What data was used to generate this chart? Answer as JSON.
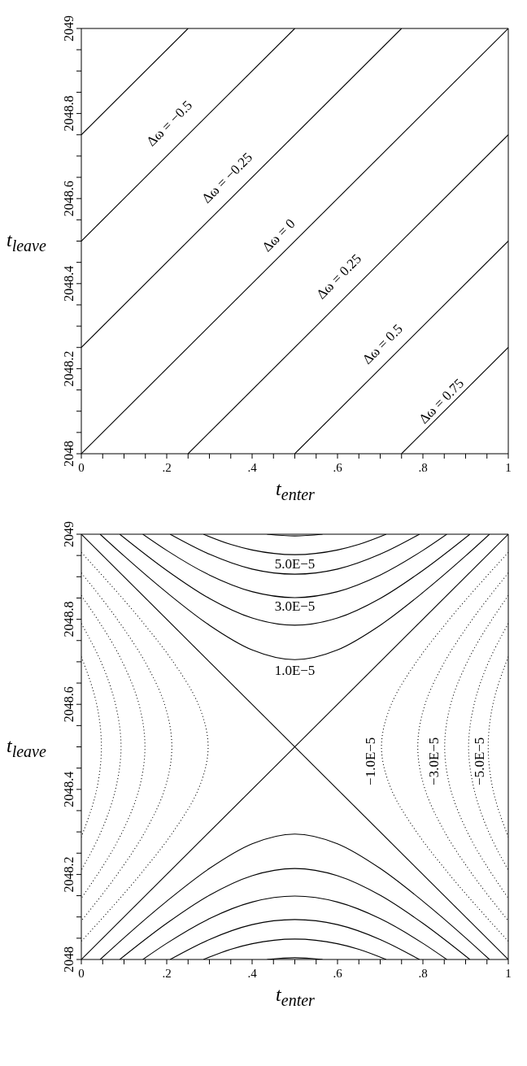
{
  "chart_data": [
    {
      "type": "line",
      "xlabel": "t$_{enter}$",
      "ylabel": "t$_{leave}$",
      "xlim": [
        0,
        1
      ],
      "ylim": [
        2048,
        2049
      ],
      "marker": "none",
      "xticks": [
        {
          "value": 0,
          "label": "0"
        },
        {
          "value": 0.05,
          "label": null
        },
        {
          "value": 0.1,
          "label": null
        },
        {
          "value": 0.15,
          "label": null
        },
        {
          "value": 0.2,
          "label": ".2"
        },
        {
          "value": 0.25,
          "label": null
        },
        {
          "value": 0.3,
          "label": null
        },
        {
          "value": 0.35,
          "label": null
        },
        {
          "value": 0.4,
          "label": ".4"
        },
        {
          "value": 0.45,
          "label": null
        },
        {
          "value": 0.5,
          "label": null
        },
        {
          "value": 0.55,
          "label": null
        },
        {
          "value": 0.6,
          "label": ".6"
        },
        {
          "value": 0.65,
          "label": null
        },
        {
          "value": 0.7,
          "label": null
        },
        {
          "value": 0.75,
          "label": null
        },
        {
          "value": 0.8,
          "label": ".8"
        },
        {
          "value": 0.85,
          "label": null
        },
        {
          "value": 0.9,
          "label": null
        },
        {
          "value": 0.95,
          "label": null
        },
        {
          "value": 1,
          "label": "1"
        }
      ],
      "yticks": [
        2048,
        {
          "value": 2048.05,
          "label": null
        },
        {
          "value": 2048.1,
          "label": null
        },
        {
          "value": 2048.15,
          "label": null
        },
        2048.2,
        {
          "value": 2048.25,
          "label": null
        },
        {
          "value": 2048.3,
          "label": null
        },
        {
          "value": 2048.35,
          "label": null
        },
        2048.4,
        {
          "value": 2048.45,
          "label": null
        },
        {
          "value": 2048.5,
          "label": null
        },
        {
          "value": 2048.55,
          "label": null
        },
        2048.6,
        {
          "value": 2048.65,
          "label": null
        },
        {
          "value": 2048.7,
          "label": null
        },
        {
          "value": 2048.75,
          "label": null
        },
        2048.8,
        {
          "value": 2048.85,
          "label": null
        },
        {
          "value": 2048.9,
          "label": null
        },
        {
          "value": 2048.95,
          "label": null
        },
        2049
      ],
      "series": [
        {
          "color": "#000000",
          "x": [
            0,
            0.25
          ],
          "values": [
            2048.75,
            2049
          ]
        },
        {
          "color": "#000000",
          "x": [
            0,
            0.5
          ],
          "values": [
            2048.5,
            2049
          ]
        },
        {
          "color": "#000000",
          "x": [
            0,
            0.75
          ],
          "values": [
            2048.25,
            2049
          ]
        },
        {
          "color": "#000000",
          "x": [
            0,
            1
          ],
          "values": [
            2048,
            2049
          ]
        },
        {
          "color": "#000000",
          "x": [
            0.25,
            1
          ],
          "values": [
            2048,
            2048.75
          ]
        },
        {
          "color": "#000000",
          "x": [
            0.5,
            1
          ],
          "values": [
            2048,
            2048.5
          ]
        },
        {
          "color": "#000000",
          "x": [
            0.75,
            1
          ],
          "values": [
            2048,
            2048.25
          ]
        }
      ],
      "annotations": [
        "Δω = −0.5",
        "Δω = −0.25",
        "Δω = 0",
        "Δω = 0.25",
        "Δω = 0.5",
        "Δω = 0.75"
      ]
    },
    {
      "type": "line",
      "xlabel": "t$_{enter}$",
      "ylabel": "t$_{leave}$",
      "xlim": [
        0,
        1
      ],
      "ylim": [
        2048,
        2049
      ],
      "marker": "none",
      "xticks": [
        {
          "value": 0,
          "label": "0"
        },
        {
          "value": 0.05,
          "label": null
        },
        {
          "value": 0.1,
          "label": null
        },
        {
          "value": 0.15,
          "label": null
        },
        {
          "value": 0.2,
          "label": ".2"
        },
        {
          "value": 0.25,
          "label": null
        },
        {
          "value": 0.3,
          "label": null
        },
        {
          "value": 0.35,
          "label": null
        },
        {
          "value": 0.4,
          "label": ".4"
        },
        {
          "value": 0.45,
          "label": null
        },
        {
          "value": 0.5,
          "label": null
        },
        {
          "value": 0.55,
          "label": null
        },
        {
          "value": 0.6,
          "label": ".6"
        },
        {
          "value": 0.65,
          "label": null
        },
        {
          "value": 0.7,
          "label": null
        },
        {
          "value": 0.75,
          "label": null
        },
        {
          "value": 0.8,
          "label": ".8"
        },
        {
          "value": 0.85,
          "label": null
        },
        {
          "value": 0.9,
          "label": null
        },
        {
          "value": 0.95,
          "label": null
        },
        {
          "value": 1,
          "label": "1"
        }
      ],
      "yticks": [
        2048,
        {
          "value": 2048.05,
          "label": null
        },
        {
          "value": 2048.1,
          "label": null
        },
        {
          "value": 2048.15,
          "label": null
        },
        2048.2,
        {
          "value": 2048.25,
          "label": null
        },
        {
          "value": 2048.3,
          "label": null
        },
        {
          "value": 2048.35,
          "label": null
        },
        2048.4,
        {
          "value": 2048.45,
          "label": null
        },
        {
          "value": 2048.5,
          "label": null
        },
        {
          "value": 2048.55,
          "label": null
        },
        2048.6,
        {
          "value": 2048.65,
          "label": null
        },
        {
          "value": 2048.7,
          "label": null
        },
        {
          "value": 2048.75,
          "label": null
        },
        2048.8,
        {
          "value": 2048.85,
          "label": null
        },
        {
          "value": 2048.9,
          "label": null
        },
        {
          "value": 2048.95,
          "label": null
        },
        2049
      ],
      "series": [
        {
          "color": "#000000",
          "line_style": "solid",
          "x": [
            0.044,
            0.1,
            0.2,
            0.3,
            0.4,
            0.5,
            0.6,
            0.7,
            0.8,
            0.9,
            0.956
          ],
          "values": [
            2049,
            2048.949,
            2048.863,
            2048.786,
            2048.728,
            2048.705,
            2048.728,
            2048.786,
            2048.863,
            2048.949,
            2049
          ]
        },
        {
          "color": "#000000",
          "line_style": "solid",
          "x": [
            0.09,
            0.2,
            0.3,
            0.4,
            0.5,
            0.6,
            0.7,
            0.8,
            0.91
          ],
          "values": [
            2049,
            2048.915,
            2048.849,
            2048.803,
            2048.786,
            2048.803,
            2048.849,
            2048.915,
            2049
          ]
        },
        {
          "color": "#000000",
          "line_style": "solid",
          "x": [
            0.144,
            0.2,
            0.3,
            0.4,
            0.5,
            0.6,
            0.7,
            0.8,
            0.856
          ],
          "values": [
            2049,
            2048.962,
            2048.904,
            2048.865,
            2048.851,
            2048.865,
            2048.904,
            2048.962,
            2049
          ]
        },
        {
          "color": "#000000",
          "line_style": "solid",
          "x": [
            0.208,
            0.3,
            0.4,
            0.5,
            0.6,
            0.7,
            0.792
          ],
          "values": [
            2049,
            2048.953,
            2048.918,
            2048.906,
            2048.918,
            2048.953,
            2049
          ]
        },
        {
          "color": "#000000",
          "line_style": "solid",
          "x": [
            0.286,
            0.35,
            0.4,
            0.5,
            0.6,
            0.65,
            0.714
          ],
          "values": [
            2049,
            2048.976,
            2048.963,
            2048.952,
            2048.963,
            2048.976,
            2049
          ]
        },
        {
          "color": "#000000",
          "line_style": "solid",
          "x": [
            0.435,
            0.5,
            0.565
          ],
          "values": [
            2049,
            2048.996,
            2049
          ]
        },
        {
          "color": "#000000",
          "line_style": "solid",
          "x": [
            0.044,
            0.1,
            0.2,
            0.3,
            0.4,
            0.5,
            0.6,
            0.7,
            0.8,
            0.9,
            0.956
          ],
          "values": [
            2048,
            2048.051,
            2048.137,
            2048.214,
            2048.272,
            2048.295,
            2048.272,
            2048.214,
            2048.137,
            2048.051,
            2048
          ]
        },
        {
          "color": "#000000",
          "line_style": "solid",
          "x": [
            0.09,
            0.2,
            0.3,
            0.4,
            0.5,
            0.6,
            0.7,
            0.8,
            0.91
          ],
          "values": [
            2048,
            2048.085,
            2048.151,
            2048.197,
            2048.214,
            2048.197,
            2048.151,
            2048.085,
            2048
          ]
        },
        {
          "color": "#000000",
          "line_style": "solid",
          "x": [
            0.144,
            0.2,
            0.3,
            0.4,
            0.5,
            0.6,
            0.7,
            0.8,
            0.856
          ],
          "values": [
            2048,
            2048.038,
            2048.096,
            2048.135,
            2048.149,
            2048.135,
            2048.096,
            2048.038,
            2048
          ]
        },
        {
          "color": "#000000",
          "line_style": "solid",
          "x": [
            0.208,
            0.3,
            0.4,
            0.5,
            0.6,
            0.7,
            0.792
          ],
          "values": [
            2048,
            2048.047,
            2048.082,
            2048.094,
            2048.082,
            2048.047,
            2048
          ]
        },
        {
          "color": "#000000",
          "line_style": "solid",
          "x": [
            0.286,
            0.35,
            0.4,
            0.5,
            0.6,
            0.65,
            0.714
          ],
          "values": [
            2048,
            2048.024,
            2048.037,
            2048.048,
            2048.037,
            2048.024,
            2048
          ]
        },
        {
          "color": "#000000",
          "line_style": "solid",
          "x": [
            0.435,
            0.5,
            0.565
          ],
          "values": [
            2048,
            2048.004,
            2048
          ]
        },
        {
          "color": "#000000",
          "line_style": "solid",
          "x": [
            0,
            1
          ],
          "values": [
            2048,
            2049
          ]
        },
        {
          "color": "#000000",
          "line_style": "solid",
          "x": [
            0,
            1
          ],
          "values": [
            2049,
            2048
          ]
        },
        {
          "color": "#000000",
          "line_style": "dotted",
          "x": [
            0,
            0.138,
            0.215,
            0.274,
            0.297,
            0.274,
            0.215,
            0.138,
            0
          ],
          "values": [
            2048.957,
            2048.8,
            2048.7,
            2048.6,
            2048.5,
            2048.4,
            2048.3,
            2048.2,
            2048.043
          ]
        },
        {
          "color": "#000000",
          "line_style": "dotted",
          "x": [
            0,
            0.084,
            0.149,
            0.195,
            0.212,
            0.195,
            0.149,
            0.084,
            0
          ],
          "values": [
            2048.909,
            2048.8,
            2048.7,
            2048.6,
            2048.5,
            2048.4,
            2048.3,
            2048.2,
            2048.091
          ]
        },
        {
          "color": "#000000",
          "line_style": "dotted",
          "x": [
            0,
            0.096,
            0.135,
            0.149,
            0.135,
            0.096,
            0
          ],
          "values": [
            2048.856,
            2048.7,
            2048.6,
            2048.5,
            2048.4,
            2048.3,
            2048.144
          ]
        },
        {
          "color": "#000000",
          "line_style": "dotted",
          "x": [
            0,
            0.046,
            0.08,
            0.093,
            0.08,
            0.046,
            0
          ],
          "values": [
            2048.79,
            2048.7,
            2048.6,
            2048.5,
            2048.4,
            2048.3,
            2048.21
          ]
        },
        {
          "color": "#000000",
          "line_style": "dotted",
          "x": [
            0,
            0.036,
            0.047,
            0.036,
            0
          ],
          "values": [
            2048.712,
            2048.6,
            2048.5,
            2048.4,
            2048.288
          ]
        },
        {
          "color": "#000000",
          "line_style": "dotted",
          "x": [
            1,
            0.862,
            0.785,
            0.726,
            0.703,
            0.726,
            0.785,
            0.862,
            1
          ],
          "values": [
            2048.957,
            2048.8,
            2048.7,
            2048.6,
            2048.5,
            2048.4,
            2048.3,
            2048.2,
            2048.043
          ]
        },
        {
          "color": "#000000",
          "line_style": "dotted",
          "x": [
            1,
            0.916,
            0.851,
            0.805,
            0.788,
            0.805,
            0.851,
            0.916,
            1
          ],
          "values": [
            2048.909,
            2048.8,
            2048.7,
            2048.6,
            2048.5,
            2048.4,
            2048.3,
            2048.2,
            2048.091
          ]
        },
        {
          "color": "#000000",
          "line_style": "dotted",
          "x": [
            1,
            0.904,
            0.865,
            0.851,
            0.865,
            0.904,
            1
          ],
          "values": [
            2048.856,
            2048.7,
            2048.6,
            2048.5,
            2048.4,
            2048.3,
            2048.144
          ]
        },
        {
          "color": "#000000",
          "line_style": "dotted",
          "x": [
            1,
            0.954,
            0.92,
            0.907,
            0.92,
            0.954,
            1
          ],
          "values": [
            2048.79,
            2048.7,
            2048.6,
            2048.5,
            2048.4,
            2048.3,
            2048.21
          ]
        },
        {
          "color": "#000000",
          "line_style": "dotted",
          "x": [
            1,
            0.964,
            0.953,
            0.964,
            1
          ],
          "values": [
            2048.712,
            2048.6,
            2048.5,
            2048.4,
            2048.288
          ]
        }
      ],
      "annotations": [
        "5.0E−5",
        "3.0E−5",
        "1.0E−5",
        "−1.0E−5",
        "−3.0E−5",
        "−5.0E−5"
      ]
    }
  ]
}
